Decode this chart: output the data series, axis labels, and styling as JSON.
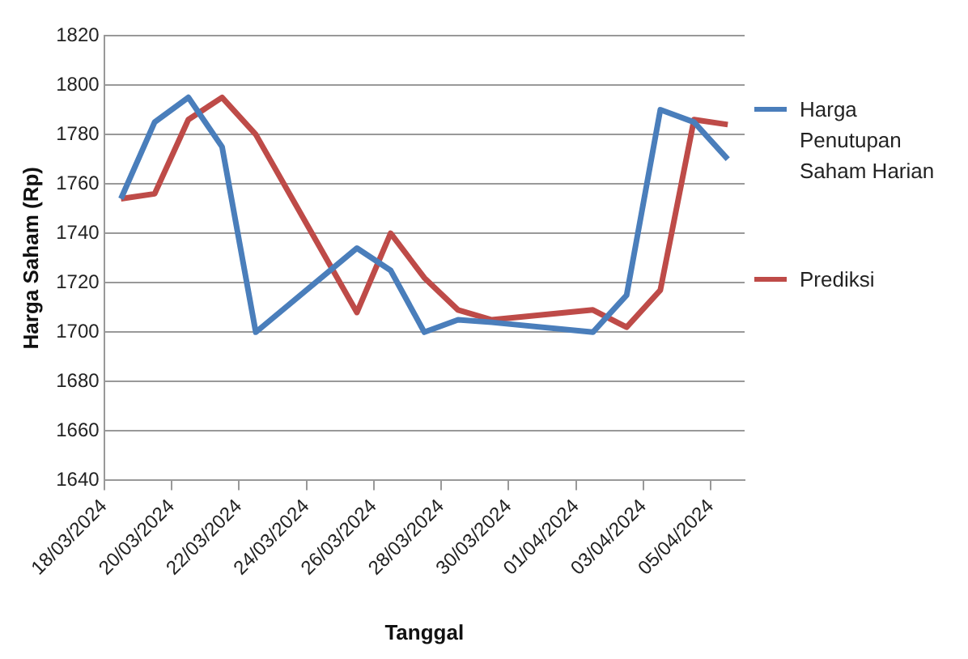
{
  "chart_data": {
    "type": "line",
    "xlabel": "Tanggal",
    "ylabel": "Harga Saham (Rp)",
    "xlim": [
      "2024-03-18",
      "2024-04-06"
    ],
    "xticks": [
      {
        "value": "2024-03-18",
        "label": "18/03/2024"
      },
      {
        "value": "2024-03-20",
        "label": "20/03/2024"
      },
      {
        "value": "2024-03-22",
        "label": "22/03/2024"
      },
      {
        "value": "2024-03-24",
        "label": "24/03/2024"
      },
      {
        "value": "2024-03-26",
        "label": "26/03/2024"
      },
      {
        "value": "2024-03-28",
        "label": "28/03/2024"
      },
      {
        "value": "2024-03-30",
        "label": "30/03/2024"
      },
      {
        "value": "2024-04-01",
        "label": "01/04/2024"
      },
      {
        "value": "2024-04-03",
        "label": "03/04/2024"
      },
      {
        "value": "2024-04-05",
        "label": "05/04/2024"
      }
    ],
    "x": [
      "2024-03-18T12:00",
      "2024-03-19T12:00",
      "2024-03-20T12:00",
      "2024-03-21T12:00",
      "2024-03-22T12:00",
      "2024-03-25T12:00",
      "2024-03-26T12:00",
      "2024-03-27T12:00",
      "2024-03-28T12:00",
      "2024-03-29T12:00",
      "2024-04-01T12:00",
      "2024-04-02T12:00",
      "2024-04-03T12:00",
      "2024-04-04T12:00",
      "2024-04-05T12:00"
    ],
    "ylim": [
      1640,
      1820
    ],
    "yticks": [
      1640,
      1660,
      1680,
      1700,
      1720,
      1740,
      1760,
      1780,
      1800,
      1820
    ],
    "grid": "y",
    "legend": "right",
    "marker": "none",
    "line_style": "solid",
    "series": [
      {
        "name": "Harga Penutupan Saham Harian",
        "color": "#4a7ebb",
        "values": [
          1754,
          1785,
          1795,
          1775,
          1700,
          1734,
          1725,
          1700,
          1705,
          1704,
          1700,
          1715,
          1790,
          1785,
          1770
        ]
      },
      {
        "name": "Prediksi",
        "color": "#be4b48",
        "values": [
          1754,
          1756,
          1786,
          1795,
          1780,
          1708,
          1740,
          1722,
          1709,
          1705,
          1709,
          1702,
          1717,
          1786,
          1784
        ]
      }
    ]
  }
}
